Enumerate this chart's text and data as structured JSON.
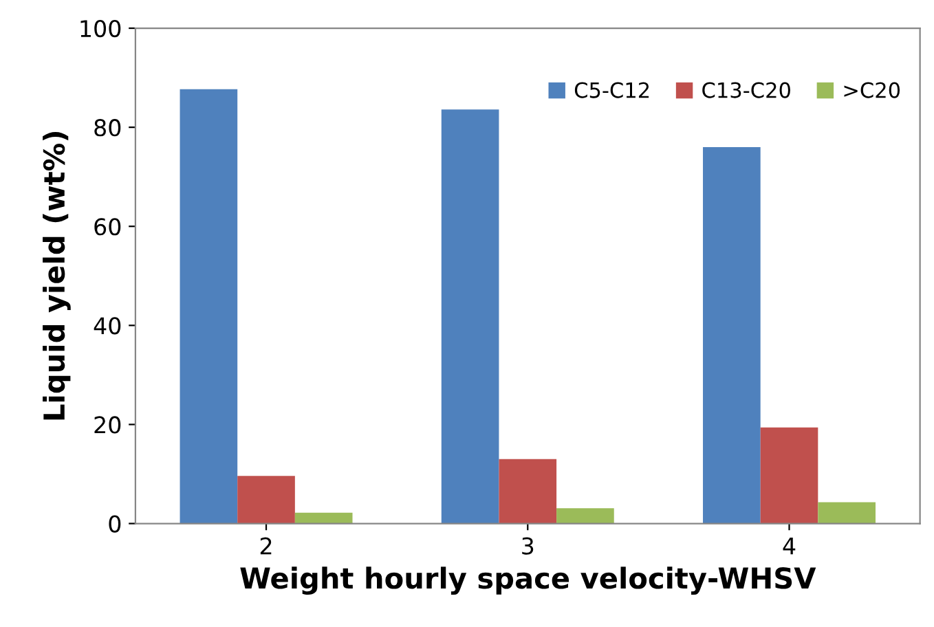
{
  "chart_data": {
    "type": "bar",
    "xlabel": "Weight hourly space velocity-WHSV",
    "ylabel": "Liquid yield (wt%)",
    "categories": [
      "2",
      "3",
      "4"
    ],
    "series": [
      {
        "name": "C5-C12",
        "color": "#4f81bd",
        "values": [
          87.7,
          83.6,
          76.0
        ]
      },
      {
        "name": "C13-C20",
        "color": "#c0504d",
        "values": [
          9.6,
          13.0,
          19.4
        ]
      },
      {
        "name": ">C20",
        "color": "#9bbb59",
        "values": [
          2.2,
          3.1,
          4.3
        ]
      }
    ],
    "ylim": [
      0,
      100
    ],
    "yticks": [
      0,
      20,
      40,
      60,
      80,
      100
    ],
    "grid": false,
    "legend": "top right"
  }
}
